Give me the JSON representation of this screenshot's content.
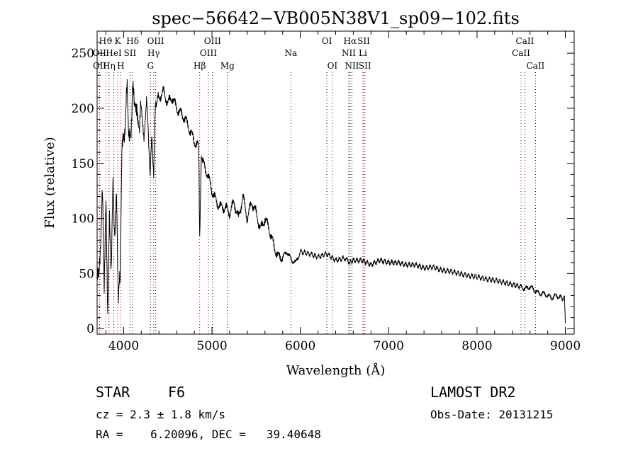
{
  "chart_data": {
    "type": "line",
    "title": "spec−56642−VB005N38V1_sp09−102.fits",
    "xlabel": "Wavelength (Å)",
    "ylabel": "Flux (relative)",
    "xlim": [
      3700,
      9100
    ],
    "ylim": [
      -5,
      270
    ],
    "x_ticks": [
      4000,
      5000,
      6000,
      7000,
      8000,
      9000
    ],
    "y_ticks": [
      0,
      50,
      100,
      150,
      200,
      250
    ],
    "series": [
      {
        "x": [
          3700,
          3720,
          3740,
          3760,
          3780,
          3800,
          3820,
          3840,
          3860,
          3880,
          3900,
          3920,
          3940,
          3960,
          3980,
          4000,
          4020,
          4040,
          4060,
          4080,
          4100,
          4120,
          4150,
          4180,
          4200,
          4230,
          4260,
          4300,
          4320,
          4340,
          4360,
          4400,
          4450,
          4500,
          4550,
          4600,
          4650,
          4700,
          4750,
          4800,
          4850,
          4861,
          4880,
          4900,
          4950,
          5000,
          5050,
          5100,
          5150,
          5200,
          5250,
          5300,
          5350,
          5400,
          5450,
          5500,
          5550,
          5600,
          5650,
          5700,
          5750,
          5800,
          5850,
          5900,
          5950,
          6000,
          6100,
          6200,
          6300,
          6400,
          6500,
          6563,
          6600,
          6700,
          6800,
          6900,
          7000,
          7100,
          7200,
          7300,
          7400,
          7500,
          7600,
          7700,
          7800,
          7900,
          8000,
          8100,
          8200,
          8300,
          8400,
          8500,
          8550,
          8600,
          8650,
          8700,
          8750,
          8800,
          8850,
          8900,
          8950,
          8990,
          9000
        ],
        "y": [
          60,
          40,
          85,
          120,
          45,
          110,
          20,
          95,
          60,
          125,
          90,
          115,
          35,
          40,
          170,
          165,
          195,
          215,
          180,
          165,
          225,
          200,
          205,
          185,
          200,
          175,
          210,
          140,
          175,
          140,
          205,
          210,
          215,
          205,
          210,
          200,
          195,
          190,
          180,
          170,
          165,
          80,
          160,
          150,
          140,
          125,
          115,
          110,
          110,
          105,
          115,
          100,
          120,
          100,
          115,
          105,
          90,
          100,
          90,
          75,
          65,
          65,
          70,
          62,
          60,
          70,
          68,
          65,
          68,
          62,
          64,
          60,
          62,
          62,
          58,
          62,
          60,
          60,
          58,
          58,
          55,
          56,
          53,
          52,
          50,
          48,
          47,
          45,
          44,
          42,
          40,
          38,
          36,
          38,
          35,
          32,
          32,
          30,
          28,
          30,
          28,
          27,
          5
        ]
      }
    ],
    "lines": [
      {
        "label": "Hϑ",
        "x": 3798,
        "row": 1
      },
      {
        "label": "OII",
        "x": 3727,
        "row": 2
      },
      {
        "label": "OII",
        "x": 3729,
        "row": 3
      },
      {
        "label": "Hη",
        "x": 3835,
        "row": 3
      },
      {
        "label": "K",
        "x": 3934,
        "row": 1
      },
      {
        "label": "HeI",
        "x": 3889,
        "row": 2
      },
      {
        "label": "H",
        "x": 3968,
        "row": 3
      },
      {
        "label": "SII",
        "x": 4072,
        "row": 2
      },
      {
        "label": "Hδ",
        "x": 4102,
        "row": 1
      },
      {
        "label": "OIII",
        "x": 4363,
        "row": 1
      },
      {
        "label": "Hγ",
        "x": 4340,
        "row": 2
      },
      {
        "label": "G",
        "x": 4304,
        "row": 3
      },
      {
        "label": "Hβ",
        "x": 4861,
        "row": 3
      },
      {
        "label": "OIII",
        "x": 5007,
        "row": 1
      },
      {
        "label": "OIII",
        "x": 4959,
        "row": 2
      },
      {
        "label": "Mg",
        "x": 5175,
        "row": 3
      },
      {
        "label": "Na",
        "x": 5893,
        "row": 2
      },
      {
        "label": "OI",
        "x": 6300,
        "row": 1
      },
      {
        "label": "OI",
        "x": 6363,
        "row": 3
      },
      {
        "label": "Hα",
        "x": 6563,
        "row": 1
      },
      {
        "label": "SII",
        "x": 6717,
        "row": 1
      },
      {
        "label": "NII",
        "x": 6548,
        "row": 2
      },
      {
        "label": "Li",
        "x": 6708,
        "row": 2
      },
      {
        "label": "NII",
        "x": 6584,
        "row": 3
      },
      {
        "label": "SII",
        "x": 6731,
        "row": 3
      },
      {
        "label": "CaII",
        "x": 8542,
        "row": 1
      },
      {
        "label": "CaII",
        "x": 8498,
        "row": 2
      },
      {
        "label": "CaII",
        "x": 8662,
        "row": 3
      }
    ]
  },
  "info": {
    "class_label": "STAR",
    "subclass": "F6",
    "survey": "LAMOST DR2",
    "cz": "cz = 2.3 ± 1.8 km/s",
    "obs_date": "Obs-Date: 20131215",
    "coords": "RA =    6.20096, DEC =   39.40648"
  }
}
